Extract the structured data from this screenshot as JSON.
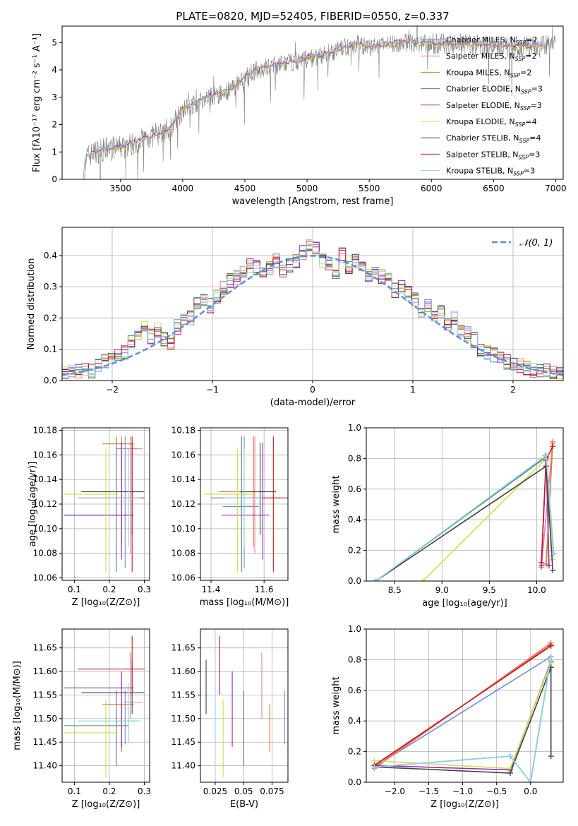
{
  "colors": {
    "chabrier_miles": "#6b8fd6",
    "salpeter_miles": "#e07fb0",
    "kroupa_miles": "#e07a2e",
    "chabrier_elodie": "#55806a",
    "salpeter_elodie": "#9b2bb8",
    "kroupa_elodie": "#c8e04a",
    "chabrier_stelib": "#444444",
    "salpeter_stelib": "#c41a1a",
    "kroupa_stelib": "#8fd3e8",
    "spectrum_gray": "#808080",
    "gaussian": "#5b8fdc",
    "grid": "#b0b0b0"
  },
  "chart_data": [
    {
      "id": "spectrum",
      "type": "line",
      "title": "PLATE=0820, MJD=52405, FIBERID=0550, z=0.337",
      "xlabel": "wavelength [Angstrom, rest frame]",
      "ylabel": "Flux [fλ10⁻¹⁷ erg cm⁻² s⁻¹ A⁻¹]",
      "xlim": [
        3030,
        7060
      ],
      "ylim": [
        0,
        5.6
      ],
      "xticks": [
        3500,
        4000,
        4500,
        5000,
        5500,
        6000,
        6500,
        7000
      ],
      "yticks": [
        0,
        1,
        2,
        3,
        4,
        5
      ],
      "grid": false,
      "legend_position": "top-right",
      "legend": [
        {
          "label": "Chabrier MILES, N",
          "sub": "SSP",
          "tail": "=2",
          "color_key": "chabrier_miles"
        },
        {
          "label": "Salpeter MILES, N",
          "sub": "SSP",
          "tail": "=2",
          "color_key": "salpeter_miles"
        },
        {
          "label": "Kroupa MILES, N",
          "sub": "SSP",
          "tail": "=2",
          "color_key": "kroupa_miles"
        },
        {
          "label": "Chabrier ELODIE, N",
          "sub": "SSP",
          "tail": "=3",
          "color_key": "chabrier_elodie"
        },
        {
          "label": "Salpeter ELODIE, N",
          "sub": "SSP",
          "tail": "=3",
          "color_key": "salpeter_elodie"
        },
        {
          "label": "Kroupa ELODIE, N",
          "sub": "SSP",
          "tail": "=4",
          "color_key": "kroupa_elodie"
        },
        {
          "label": "Chabrier STELIB, N",
          "sub": "SSP",
          "tail": "=4",
          "color_key": "chabrier_stelib"
        },
        {
          "label": "Salpeter STELIB, N",
          "sub": "SSP",
          "tail": "=3",
          "color_key": "salpeter_stelib"
        },
        {
          "label": "Kroupa STELIB, N",
          "sub": "SSP",
          "tail": "=3",
          "color_key": "kroupa_stelib"
        }
      ],
      "continuum": [
        [
          3200,
          0.0
        ],
        [
          3215,
          0.8
        ],
        [
          3300,
          1.0
        ],
        [
          3400,
          1.1
        ],
        [
          3500,
          1.15
        ],
        [
          3600,
          1.3
        ],
        [
          3700,
          1.5
        ],
        [
          3800,
          1.65
        ],
        [
          3900,
          1.85
        ],
        [
          3950,
          2.2
        ],
        [
          4000,
          2.55
        ],
        [
          4100,
          2.75
        ],
        [
          4200,
          3.0
        ],
        [
          4300,
          3.1
        ],
        [
          4400,
          3.3
        ],
        [
          4500,
          3.75
        ],
        [
          4600,
          4.0
        ],
        [
          4700,
          4.1
        ],
        [
          4800,
          4.2
        ],
        [
          4900,
          4.3
        ],
        [
          5000,
          4.4
        ],
        [
          5100,
          4.5
        ],
        [
          5200,
          4.65
        ],
        [
          5300,
          4.8
        ],
        [
          5400,
          4.95
        ],
        [
          5500,
          4.8
        ],
        [
          5600,
          4.9
        ],
        [
          5800,
          5.0
        ],
        [
          6000,
          4.95
        ],
        [
          6200,
          4.95
        ],
        [
          6400,
          4.9
        ],
        [
          6600,
          4.85
        ],
        [
          6800,
          4.85
        ],
        [
          7000,
          4.9
        ]
      ]
    },
    {
      "id": "residuals",
      "type": "histogram",
      "xlabel": "(data-model)/error",
      "ylabel": "Normed distribution",
      "xlim": [
        -2.5,
        2.5
      ],
      "ylim": [
        0,
        0.49
      ],
      "xticks": [
        -2,
        -1,
        0,
        1,
        2
      ],
      "yticks": [
        0.0,
        0.1,
        0.2,
        0.3,
        0.4
      ],
      "grid": true,
      "legend_position": "top-right",
      "legend_math": "𝒩(0, 1)",
      "bin_width": 0.1,
      "bin_start": -2.5,
      "model_values": [
        0.02,
        0.025,
        0.03,
        0.035,
        0.03,
        0.05,
        0.06,
        0.07,
        0.08,
        0.09,
        0.12,
        0.145,
        0.17,
        0.14,
        0.16,
        0.13,
        0.12,
        0.17,
        0.2,
        0.2,
        0.25,
        0.25,
        0.24,
        0.27,
        0.3,
        0.32,
        0.33,
        0.35,
        0.37,
        0.36,
        0.34,
        0.36,
        0.38,
        0.35,
        0.37,
        0.38,
        0.41,
        0.43,
        0.42,
        0.38,
        0.37,
        0.35,
        0.4,
        0.36,
        0.38,
        0.36,
        0.34,
        0.35,
        0.33,
        0.32,
        0.29,
        0.3,
        0.28,
        0.26,
        0.22,
        0.24,
        0.21,
        0.22,
        0.18,
        0.2,
        0.16,
        0.15,
        0.13,
        0.1,
        0.09,
        0.08,
        0.07,
        0.06,
        0.05,
        0.045,
        0.04,
        0.035,
        0.03,
        0.03,
        0.025,
        0.02
      ]
    },
    {
      "id": "age_vs_Z",
      "type": "errorbar",
      "xlabel": "Z [log₁₀(Z/Z⊙)]",
      "ylabel": "age  [log₁₀(age/yr)]",
      "xlim": [
        0.065,
        0.315
      ],
      "ylim": [
        10.058,
        10.182
      ],
      "xticks": [
        0.1,
        0.2,
        0.3
      ],
      "yticks": [
        10.06,
        10.08,
        10.1,
        10.12,
        10.14,
        10.16,
        10.18
      ],
      "grid": true
    },
    {
      "id": "age_vs_mass",
      "type": "errorbar",
      "xlabel": "mass [log₁₀(M/M⊙)]",
      "ylabel": "",
      "xlim": [
        11.36,
        11.69
      ],
      "ylim": [
        10.058,
        10.182
      ],
      "xticks": [
        11.4,
        11.6
      ],
      "yticks": [
        10.06,
        10.08,
        10.1,
        10.12,
        10.14,
        10.16,
        10.18
      ],
      "grid": true
    },
    {
      "id": "weight_vs_age",
      "type": "line",
      "xlabel": "age  [log₁₀(age/yr)]",
      "ylabel": "mass weight",
      "xlim": [
        8.2,
        10.28
      ],
      "ylim": [
        0,
        1.0
      ],
      "xticks": [
        8.5,
        9.0,
        9.5,
        10.0
      ],
      "yticks": [
        0.0,
        0.2,
        0.4,
        0.6,
        0.8,
        1.0
      ],
      "grid": true
    },
    {
      "id": "mass_vs_Z",
      "type": "errorbar",
      "xlabel": "Z [log₁₀(Z/Z⊙)]",
      "ylabel": "mass [log₁₀(M/M⊙)]",
      "xlim": [
        0.065,
        0.315
      ],
      "ylim": [
        11.365,
        11.69
      ],
      "xticks": [
        0.1,
        0.2,
        0.3
      ],
      "yticks": [
        11.4,
        11.45,
        11.5,
        11.55,
        11.6,
        11.65
      ],
      "grid": true
    },
    {
      "id": "mass_vs_ebv",
      "type": "errorbar",
      "xlabel": "E(B-V)",
      "ylabel": "",
      "xlim": [
        0.012,
        0.089
      ],
      "ylim": [
        11.365,
        11.69
      ],
      "xticks": [
        0.025,
        0.05,
        0.075
      ],
      "yticks": [
        11.4,
        11.45,
        11.5,
        11.55,
        11.6,
        11.65
      ],
      "grid": true
    },
    {
      "id": "weight_vs_Z",
      "type": "line",
      "xlabel": "Z [log₁₀(Z/Z⊙)]",
      "ylabel": "mass weight",
      "xlim": [
        -2.42,
        0.48
      ],
      "ylim": [
        0,
        1.0
      ],
      "xticks": [
        -2.0,
        -1.5,
        -1.0,
        -0.5,
        0.0
      ],
      "yticks": [
        0.0,
        0.2,
        0.4,
        0.6,
        0.8,
        1.0
      ],
      "grid": true
    }
  ],
  "models": [
    {
      "key": "chabrier_miles",
      "Z": [
        0.22,
        0.28
      ],
      "age": [
        10.118,
        10.165
      ],
      "age_err": [
        10.068,
        10.175
      ],
      "mass": [
        11.495,
        11.445,
        11.56
      ],
      "ebv": 0.086,
      "age_pts": [
        [
          10.09,
          0.82
        ],
        [
          10.18,
          0.18
        ]
      ],
      "z_pts": [
        [
          -2.3,
          0.1
        ],
        [
          0.3,
          0.82
        ],
        [
          0.0,
          0.0
        ]
      ]
    },
    {
      "key": "salpeter_miles",
      "Z": [
        0.24,
        0.295
      ],
      "age": [
        10.125,
        10.165
      ],
      "age_err": [
        10.08,
        10.175
      ],
      "mass": [
        11.535,
        11.5,
        11.64
      ],
      "ebv": 0.066,
      "age_pts": [
        [
          10.05,
          0.09
        ],
        [
          10.17,
          0.91
        ]
      ],
      "z_pts": [
        [
          -2.3,
          0.09
        ],
        [
          0.3,
          0.91
        ]
      ]
    },
    {
      "key": "kroupa_miles",
      "Z": [
        0.18,
        0.27
      ],
      "age": [
        10.13,
        10.169
      ],
      "age_err": [
        10.085,
        10.175
      ],
      "mass": [
        11.53,
        11.43,
        11.53
      ],
      "ebv": 0.073,
      "age_pts": [
        [
          10.1,
          0.11
        ],
        [
          10.17,
          0.9
        ]
      ],
      "z_pts": [
        [
          -2.3,
          0.1
        ],
        [
          0.3,
          0.9
        ]
      ]
    },
    {
      "key": "chabrier_elodie",
      "Z": [
        0.07,
        0.255
      ],
      "age": [
        10.125,
        10.111
      ],
      "age_err": [
        10.065,
        10.175
      ],
      "mass": [
        11.485,
        11.4,
        11.56
      ],
      "ebv": 0.05,
      "age_pts": [
        [
          8.3,
          0.0
        ],
        [
          10.1,
          0.81
        ],
        [
          10.18,
          0.18
        ]
      ],
      "z_pts": [
        [
          -2.3,
          0.1
        ],
        [
          -0.3,
          0.17
        ],
        [
          0.0,
          0.0
        ],
        [
          0.3,
          0.82
        ]
      ]
    },
    {
      "key": "salpeter_elodie",
      "Z": [
        0.07,
        0.27
      ],
      "age": [
        10.111,
        10.111
      ],
      "age_err": [
        10.075,
        10.17
      ],
      "mass": [
        11.565,
        11.44,
        11.6
      ],
      "ebv": 0.04,
      "age_pts": [
        [
          10.05,
          0.1
        ],
        [
          10.1,
          0.81
        ],
        [
          10.13,
          0.1
        ]
      ],
      "z_pts": [
        [
          -2.3,
          0.11
        ],
        [
          -0.3,
          0.08
        ],
        [
          0.3,
          0.79
        ]
      ]
    },
    {
      "key": "kroupa_elodie",
      "Z": [
        0.07,
        0.225
      ],
      "age": [
        10.128,
        10.128
      ],
      "age_err": [
        10.065,
        10.165
      ],
      "mass": [
        11.47,
        11.375,
        11.54
      ],
      "ebv": 0.032,
      "age_pts": [
        [
          8.8,
          0.0
        ],
        [
          10.1,
          0.8
        ],
        [
          10.17,
          0.14
        ]
      ],
      "z_pts": [
        [
          -2.3,
          0.14
        ],
        [
          -0.3,
          0.09
        ],
        [
          0.3,
          0.78
        ]
      ]
    },
    {
      "key": "chabrier_stelib",
      "Z": [
        0.12,
        0.3
      ],
      "age": [
        10.13,
        10.13
      ],
      "age_err": [
        10.095,
        10.17
      ],
      "mass": [
        11.555,
        11.51,
        11.625
      ],
      "ebv": 0.017,
      "age_pts": [
        [
          8.3,
          0.0
        ],
        [
          10.1,
          0.75
        ],
        [
          10.17,
          0.07
        ]
      ],
      "z_pts": [
        [
          -2.3,
          0.1
        ],
        [
          -0.3,
          0.06
        ],
        [
          0.3,
          0.75
        ],
        [
          0.3,
          0.17
        ]
      ]
    },
    {
      "key": "salpeter_stelib",
      "Z": [
        0.11,
        0.3
      ],
      "age": [
        10.125,
        10.125
      ],
      "age_err": [
        10.065,
        10.175
      ],
      "mass": [
        11.605,
        11.55,
        11.675
      ],
      "ebv": 0.029,
      "age_pts": [
        [
          10.05,
          0.12
        ],
        [
          10.1,
          0.79
        ],
        [
          10.17,
          0.88
        ]
      ],
      "z_pts": [
        [
          -2.3,
          0.11
        ],
        [
          0.3,
          0.89
        ]
      ]
    },
    {
      "key": "kroupa_stelib",
      "Z": [
        0.11,
        0.29
      ],
      "age": [
        10.125,
        10.125
      ],
      "age_err": [
        10.085,
        10.165
      ],
      "mass": [
        11.495,
        11.45,
        11.575
      ],
      "ebv": 0.025,
      "age_pts": [
        [
          8.3,
          0.0
        ],
        [
          10.1,
          0.82
        ],
        [
          10.18,
          0.18
        ]
      ],
      "z_pts": [
        [
          -2.3,
          0.1
        ],
        [
          -0.3,
          0.17
        ],
        [
          0.0,
          0.0
        ],
        [
          0.3,
          0.82
        ]
      ]
    }
  ]
}
